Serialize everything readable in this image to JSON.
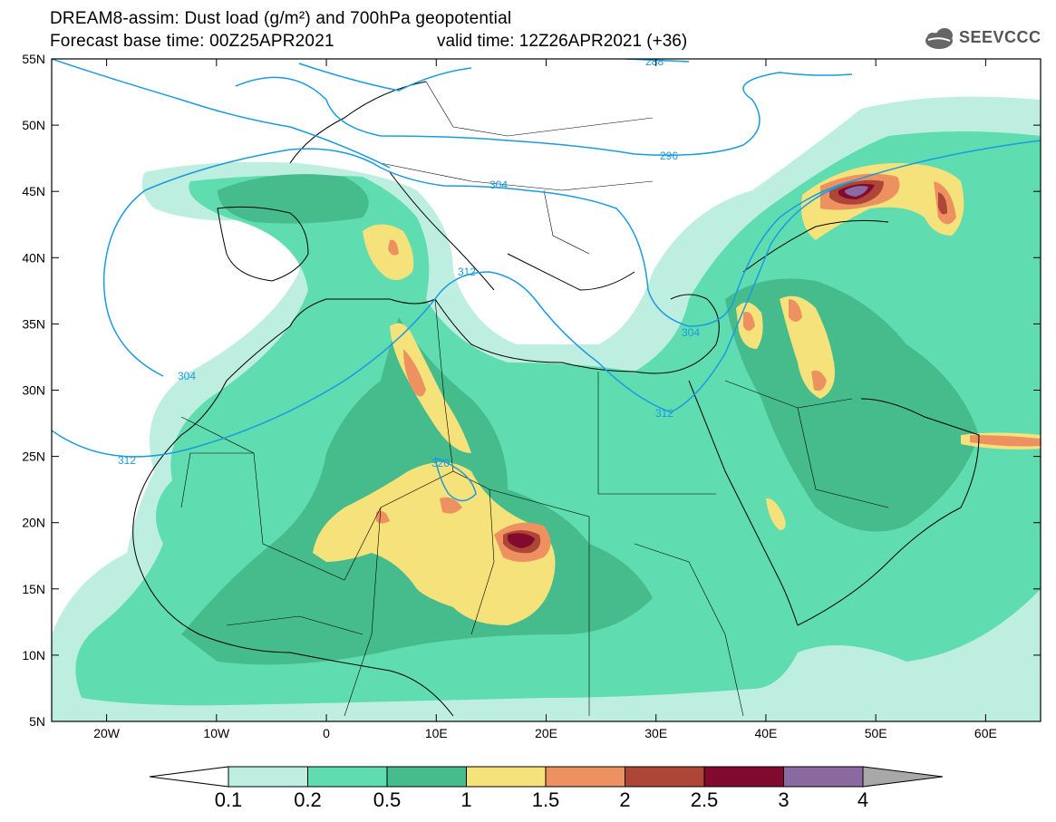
{
  "header": {
    "title_line1": "DREAM8-assim: Dust load (g/m²) and 700hPa geopotential",
    "title_line2_left": "Forecast base time: 00Z25APR2021",
    "title_line2_right": "valid time: 12Z26APR2021 (+36)",
    "logo_text": "SEEVCCC"
  },
  "map": {
    "lat_labels": [
      "55N",
      "50N",
      "45N",
      "40N",
      "35N",
      "30N",
      "25N",
      "20N",
      "15N",
      "10N",
      "5N"
    ],
    "lon_labels": [
      "20W",
      "10W",
      "0",
      "10E",
      "20E",
      "30E",
      "40E",
      "50E",
      "60E"
    ],
    "contour_labels": [
      "288",
      "296",
      "304",
      "304",
      "304",
      "312",
      "312",
      "312",
      "320"
    ],
    "colors": {
      "land_line": "#000000",
      "contour_line": "#1a9be0",
      "background": "#ffffff"
    }
  },
  "colorbar": {
    "labels": [
      "0.1",
      "0.2",
      "0.5",
      "1",
      "1.5",
      "2",
      "2.5",
      "3",
      "4"
    ],
    "colors": [
      "#ffffff",
      "#bdeee0",
      "#5fdcb0",
      "#46bb8c",
      "#f6e27a",
      "#ee9160",
      "#ad4636",
      "#820a2e",
      "#8a6aa1",
      "#a8a8a8"
    ]
  }
}
